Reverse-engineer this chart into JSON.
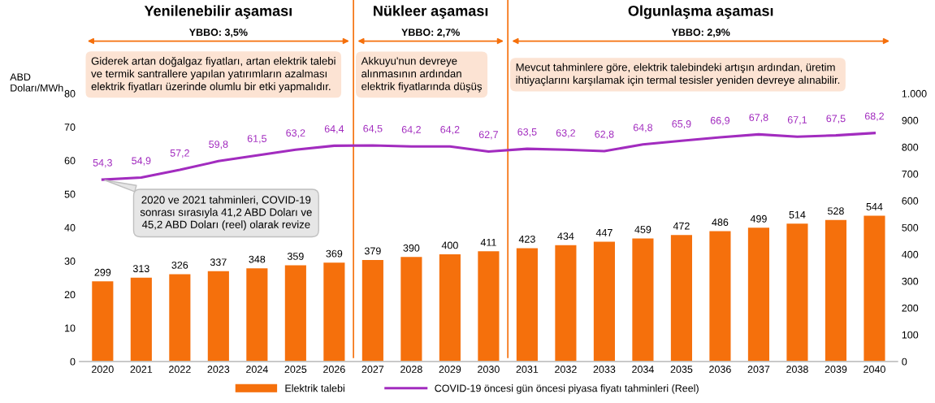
{
  "chart_data": {
    "type": "bar",
    "categories": [
      "2020",
      "2021",
      "2022",
      "2023",
      "2024",
      "2025",
      "2026",
      "2027",
      "2028",
      "2029",
      "2030",
      "2031",
      "2032",
      "2033",
      "2034",
      "2035",
      "2036",
      "2037",
      "2038",
      "2039",
      "2040"
    ],
    "series": [
      {
        "name": "Elektrik talebi",
        "axis": "y2",
        "color": "#f5700c",
        "values": [
          299,
          313,
          326,
          337,
          348,
          359,
          369,
          379,
          390,
          400,
          411,
          423,
          434,
          447,
          459,
          472,
          486,
          499,
          514,
          528,
          544
        ]
      },
      {
        "name": "COVID-19 öncesi gün öncesi piyasa fiyatı tahminleri (Reel)",
        "type": "line",
        "axis": "y",
        "color": "#a22cbf",
        "values": [
          54.3,
          54.9,
          57.2,
          59.8,
          61.5,
          63.2,
          64.4,
          64.5,
          64.2,
          64.2,
          62.7,
          63.5,
          63.2,
          62.8,
          64.8,
          65.9,
          66.9,
          67.8,
          67.1,
          67.5,
          68.2
        ],
        "value_labels": [
          "54,3",
          "54,9",
          "57,2",
          "59,8",
          "61,5",
          "63,2",
          "64,4",
          "64,5",
          "64,2",
          "64,2",
          "62,7",
          "63,5",
          "63,2",
          "62,8",
          "64,8",
          "65,9",
          "66,9",
          "67,8",
          "67,1",
          "67,5",
          "68,2"
        ]
      }
    ],
    "ylabel": "ABD\nDoları/MWh",
    "ylim": [
      0,
      80
    ],
    "yticks": [
      0,
      10,
      20,
      30,
      40,
      50,
      60,
      70,
      80
    ],
    "y2lim": [
      0,
      1000
    ],
    "y2ticks": [
      0,
      100,
      200,
      300,
      400,
      500,
      600,
      700,
      800,
      900,
      {
        "value": 1000,
        "label": "1.000"
      }
    ],
    "data_labels": true,
    "annotations": [
      "Yenilenebilir aşaması",
      "Nükleer aşaması",
      "Olgunlaşma aşaması",
      "YBBO: 3,5%",
      "YBBO: 2,7%",
      "YBBO: 2,9%",
      "Giderek artan doğalgaz fiyatları, artan elektrik talebi\nve termik santrallere yapılan yatırımların azalması\nelektrik fiyatları üzerinde olumlu bir etki yapmalıdır.",
      "Akkuyu'nun devreye\nalınmasının ardından\nelektrik fiyatlarında düşüş",
      "Mevcut tahminlere göre, elektrik talebindeki artışın ardından, üretim\nihtiyaçlarını karşılamak için termal tesisler yeniden devreye alınabilir.",
      {
        "text": "2020 ve 2021 tahminleri, COVID-19\nsonrası sırasıyla 41,2 ABD Doları ve\n45,2 ABD Doları (reel) olarak revize",
        "x": "2020",
        "y": 54.3
      }
    ],
    "grid": false,
    "legend": "bottom"
  }
}
